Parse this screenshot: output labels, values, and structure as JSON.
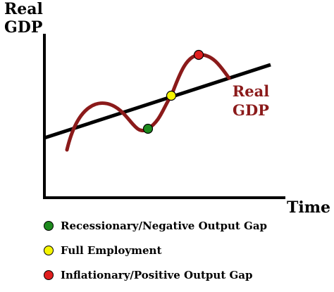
{
  "axes": {
    "y_label_line1": "Real",
    "y_label_line2": "GDP",
    "x_label": "Time"
  },
  "curve_label": {
    "line1": "Real",
    "line2": "GDP"
  },
  "colors": {
    "axis": "#000000",
    "trend_line": "#000000",
    "real_gdp_curve": "#8b1a1a",
    "curve_label": "#8b1a1a",
    "recession_marker": "#1e8a1e",
    "full_employment_marker": "#f5f500",
    "inflation_marker": "#e01f1f"
  },
  "legend": {
    "items": [
      {
        "label": "Recessionary/Negative Output Gap",
        "color": "#1e8a1e",
        "icon": "green-dot"
      },
      {
        "label": "Full Employment",
        "color": "#f5f500",
        "icon": "yellow-dot"
      },
      {
        "label": "Inflationary/Positive Output Gap",
        "color": "#e01f1f",
        "icon": "red-dot"
      }
    ]
  }
}
